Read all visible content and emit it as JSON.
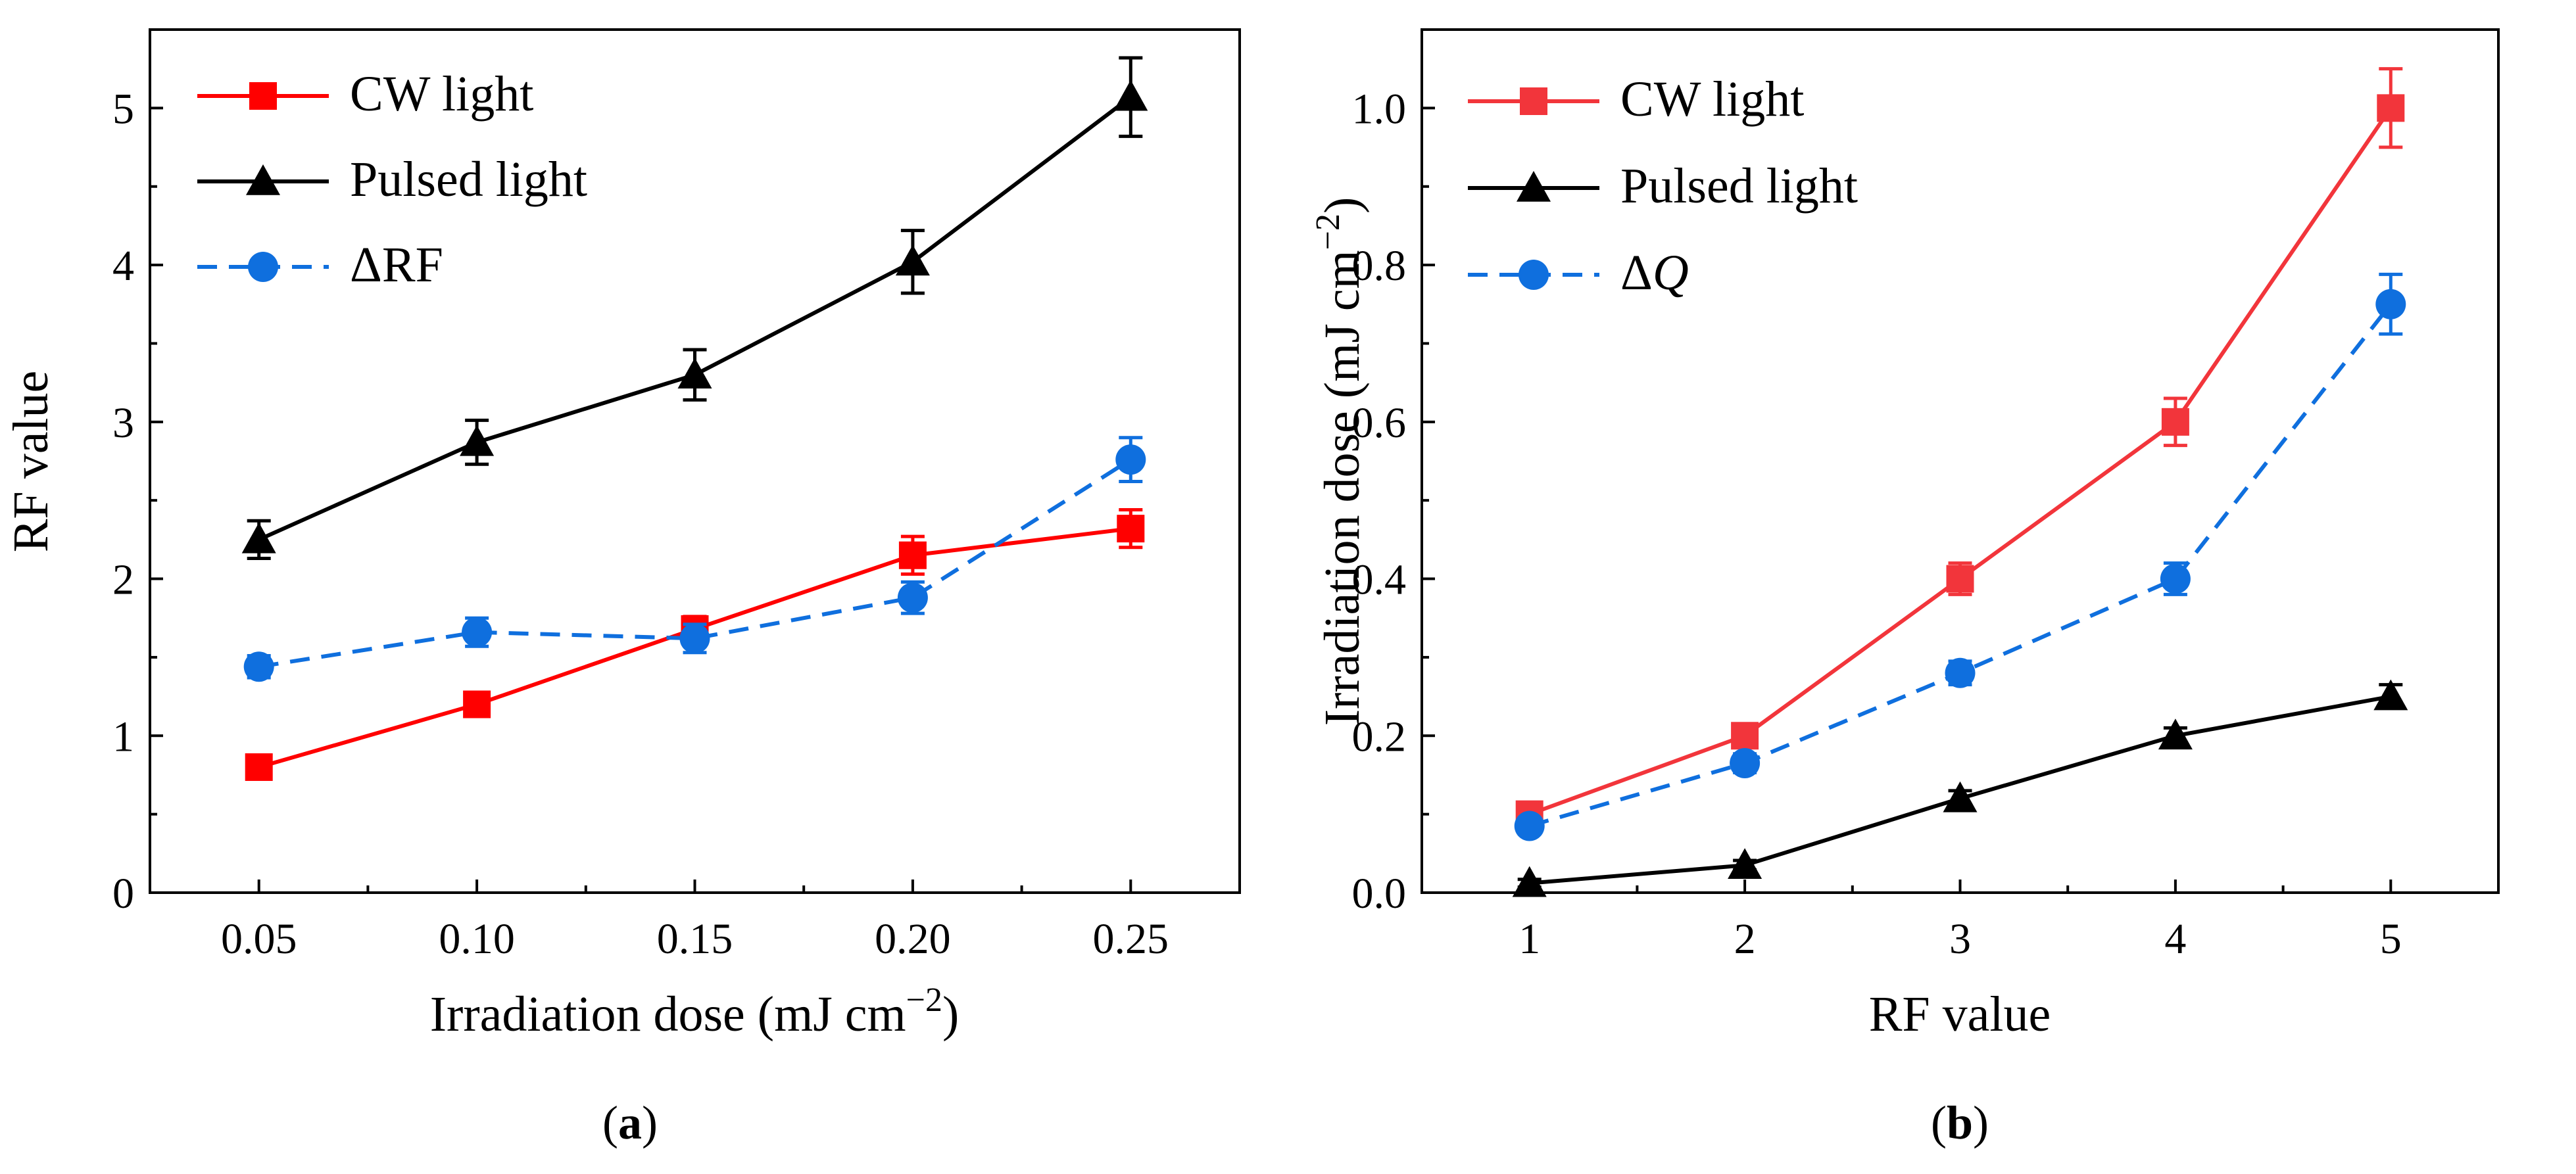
{
  "chart_data": [
    {
      "type": "line",
      "panel_label": "a",
      "xlabel": "Irradiation dose (mJ cm",
      "xlabel_sup": "−2",
      "xlabel_end": ")",
      "ylabel": "RF value",
      "x": [
        0.05,
        0.1,
        0.15,
        0.2,
        0.25
      ],
      "xtick_labels": [
        "0.05",
        "0.10",
        "0.15",
        "0.20",
        "0.25"
      ],
      "xlim": [
        0.025,
        0.275
      ],
      "ylim": [
        0,
        5.5
      ],
      "yticks": [
        0,
        1,
        2,
        3,
        4,
        5
      ],
      "ytick_labels": [
        "0",
        "1",
        "2",
        "3",
        "4",
        "5"
      ],
      "grid": false,
      "legend_position": "top-left",
      "series": [
        {
          "name": "CW light",
          "values": [
            0.8,
            1.2,
            1.68,
            2.15,
            2.32
          ],
          "errors": [
            0.06,
            0.07,
            0.08,
            0.12,
            0.12
          ],
          "color": "#ff0000",
          "marker": "square",
          "dash": "solid"
        },
        {
          "name": "Pulsed light",
          "values": [
            2.25,
            2.87,
            3.3,
            4.02,
            5.07
          ],
          "errors": [
            0.12,
            0.14,
            0.16,
            0.2,
            0.25
          ],
          "color": "#000000",
          "marker": "triangle",
          "dash": "solid"
        },
        {
          "name": "ΔRF",
          "values": [
            1.44,
            1.66,
            1.62,
            1.88,
            2.76
          ],
          "errors": [
            0.07,
            0.09,
            0.09,
            0.1,
            0.14
          ],
          "color": "#0f6fde",
          "marker": "circle",
          "dash": "dashed"
        }
      ]
    },
    {
      "type": "line",
      "panel_label": "b",
      "xlabel": "RF value",
      "ylabel": "Irradiation dose (mJ cm",
      "ylabel_sup": "−2",
      "ylabel_end": ")",
      "x": [
        1,
        2,
        3,
        4,
        5
      ],
      "xtick_labels": [
        "1",
        "2",
        "3",
        "4",
        "5"
      ],
      "xlim": [
        0.5,
        5.5
      ],
      "ylim": [
        0,
        1.1
      ],
      "yticks": [
        0,
        0.2,
        0.4,
        0.6,
        0.8,
        1.0
      ],
      "ytick_labels": [
        "0.0",
        "0.2",
        "0.4",
        "0.6",
        "0.8",
        "1.0"
      ],
      "grid": false,
      "legend_position": "top-left",
      "series": [
        {
          "name": "CW light",
          "values": [
            0.1,
            0.2,
            0.4,
            0.6,
            1.0
          ],
          "errors": [
            0.01,
            0.015,
            0.02,
            0.03,
            0.05
          ],
          "color": "#f2353b",
          "marker": "square",
          "dash": "solid"
        },
        {
          "name": "Pulsed light",
          "values": [
            0.012,
            0.035,
            0.12,
            0.2,
            0.25
          ],
          "errors": [
            0.005,
            0.006,
            0.01,
            0.01,
            0.015
          ],
          "color": "#000000",
          "marker": "triangle",
          "dash": "solid"
        },
        {
          "name": "ΔQ",
          "values": [
            0.085,
            0.165,
            0.28,
            0.4,
            0.75
          ],
          "errors": [
            0.01,
            0.012,
            0.015,
            0.02,
            0.038
          ],
          "color": "#0f6fde",
          "marker": "circle",
          "dash": "dashed"
        }
      ]
    }
  ]
}
